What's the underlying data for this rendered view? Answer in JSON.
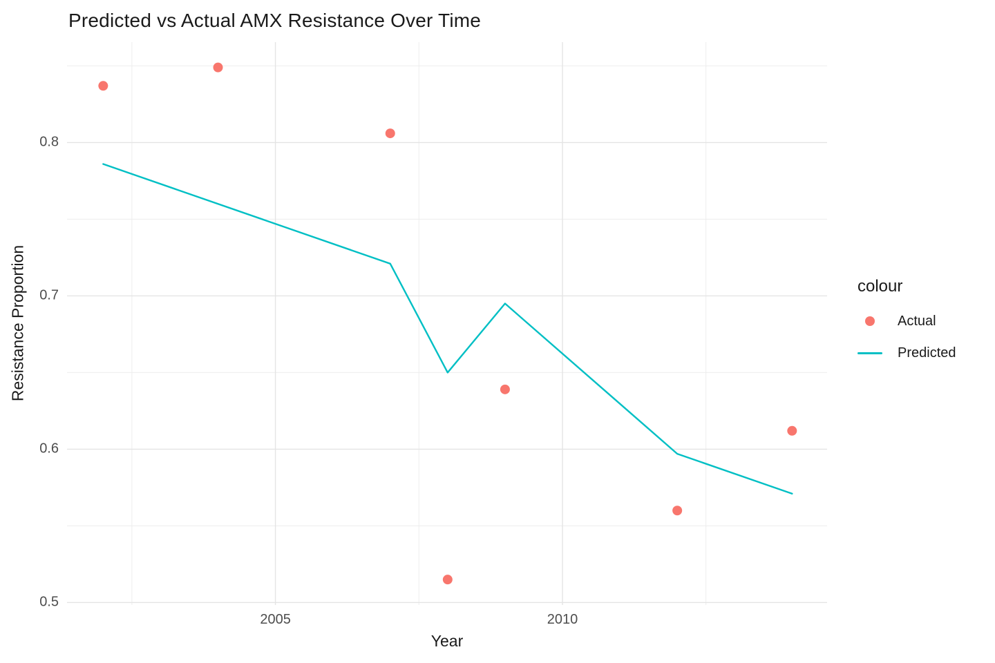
{
  "title": "Predicted vs Actual AMX Resistance Over Time",
  "chart_data": {
    "type": "line",
    "title": "Predicted vs Actual AMX Resistance Over Time",
    "xlabel": "Year",
    "ylabel": "Resistance Proportion",
    "xlim": [
      2001.37,
      2014.61
    ],
    "ylim": [
      0.4984,
      0.8655
    ],
    "grid": true,
    "legend_position": "right",
    "x_major_ticks": [
      2005,
      2010
    ],
    "x_tick_labels": [
      "2005",
      "2010"
    ],
    "x_minor_ticks": [
      2002.5,
      2007.5,
      2012.5
    ],
    "y_major_ticks": [
      0.5,
      0.6,
      0.7,
      0.8
    ],
    "y_tick_labels": [
      "0.5",
      "0.6",
      "0.7",
      "0.8"
    ],
    "y_minor_ticks": [
      0.55,
      0.65,
      0.75,
      0.85
    ],
    "series": [
      {
        "name": "Actual",
        "type": "scatter",
        "color": "#F8766D",
        "points": [
          [
            2002,
            0.837
          ],
          [
            2004,
            0.849
          ],
          [
            2007,
            0.806
          ],
          [
            2008,
            0.515
          ],
          [
            2009,
            0.639
          ],
          [
            2012,
            0.56
          ],
          [
            2014,
            0.612
          ]
        ]
      },
      {
        "name": "Predicted",
        "type": "line",
        "color": "#00BFC4",
        "points": [
          [
            2002,
            0.786
          ],
          [
            2007,
            0.721
          ],
          [
            2008,
            0.65
          ],
          [
            2009,
            0.695
          ],
          [
            2012,
            0.597
          ],
          [
            2014,
            0.571
          ]
        ]
      }
    ]
  },
  "legend": {
    "title": "colour",
    "items": [
      {
        "label": "Actual",
        "marker": "point",
        "color": "#F8766D"
      },
      {
        "label": "Predicted",
        "marker": "line",
        "color": "#00BFC4"
      }
    ]
  },
  "style": {
    "grid_major_color": "#E4E4E4",
    "grid_minor_color": "#EDEDED",
    "tick_label_color": "#4d4d4d"
  }
}
